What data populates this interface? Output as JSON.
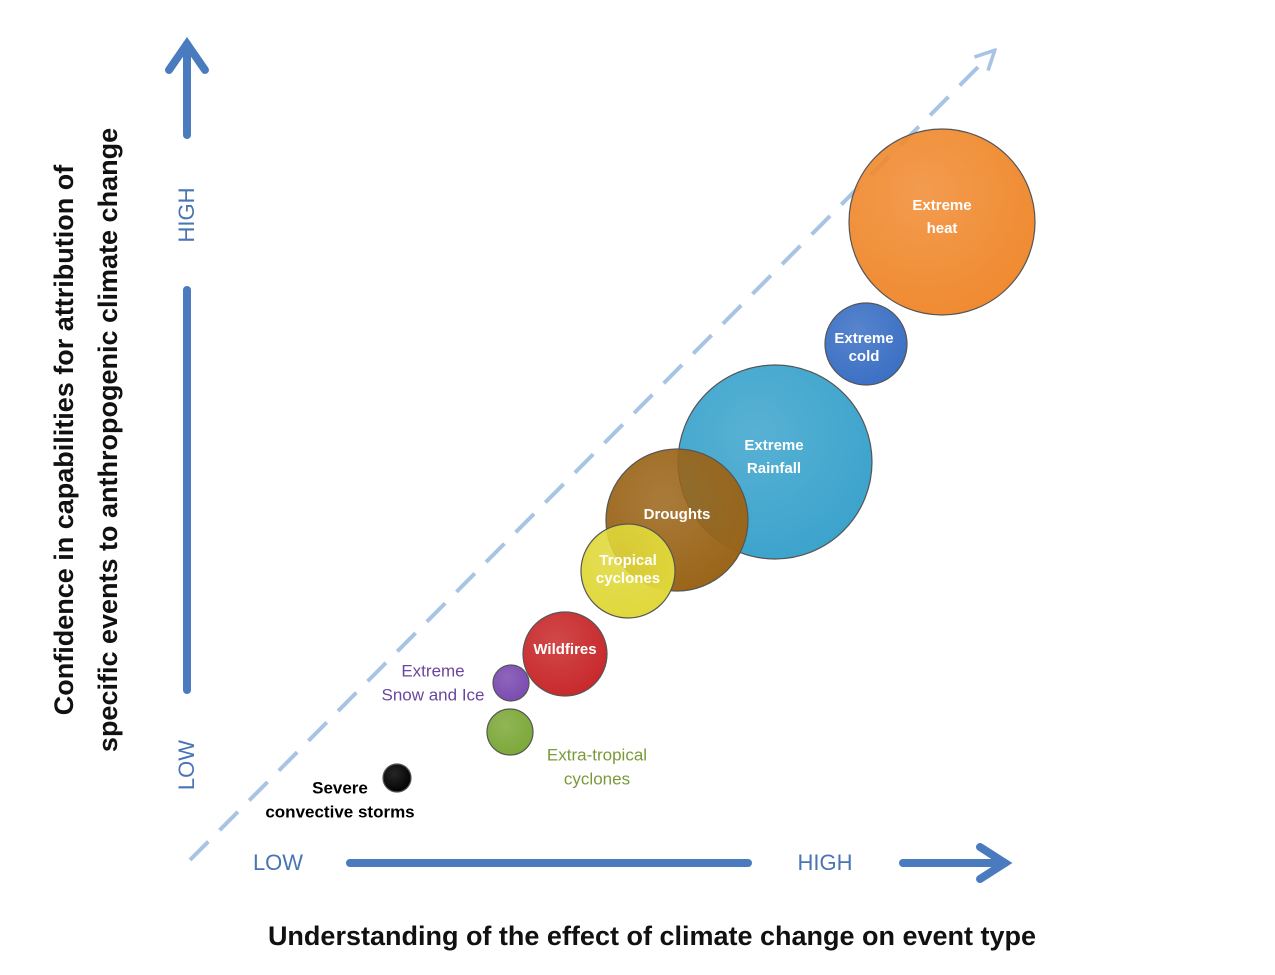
{
  "y_axis": {
    "title": [
      "Confidence in capabilities for attribution of",
      "specific events to anthropogenic climate change"
    ],
    "low": "LOW",
    "high": "HIGH"
  },
  "x_axis": {
    "title": "Understanding of the effect of climate change on event type",
    "low": "LOW",
    "high": "HIGH"
  },
  "events": [
    {
      "label": [
        "Extreme",
        "heat"
      ]
    },
    {
      "label": [
        "Extreme",
        "cold"
      ]
    },
    {
      "label": [
        "Extreme",
        "Rainfall"
      ]
    },
    {
      "label": [
        "Droughts"
      ]
    },
    {
      "label": [
        "Tropical",
        "cyclones"
      ]
    },
    {
      "label": [
        "Wildfires"
      ]
    },
    {
      "label": [
        "Extreme",
        "Snow and Ice"
      ]
    },
    {
      "label": [
        "Extra-tropical",
        "cyclones"
      ]
    },
    {
      "label": [
        "Severe",
        "convective storms"
      ]
    }
  ]
}
